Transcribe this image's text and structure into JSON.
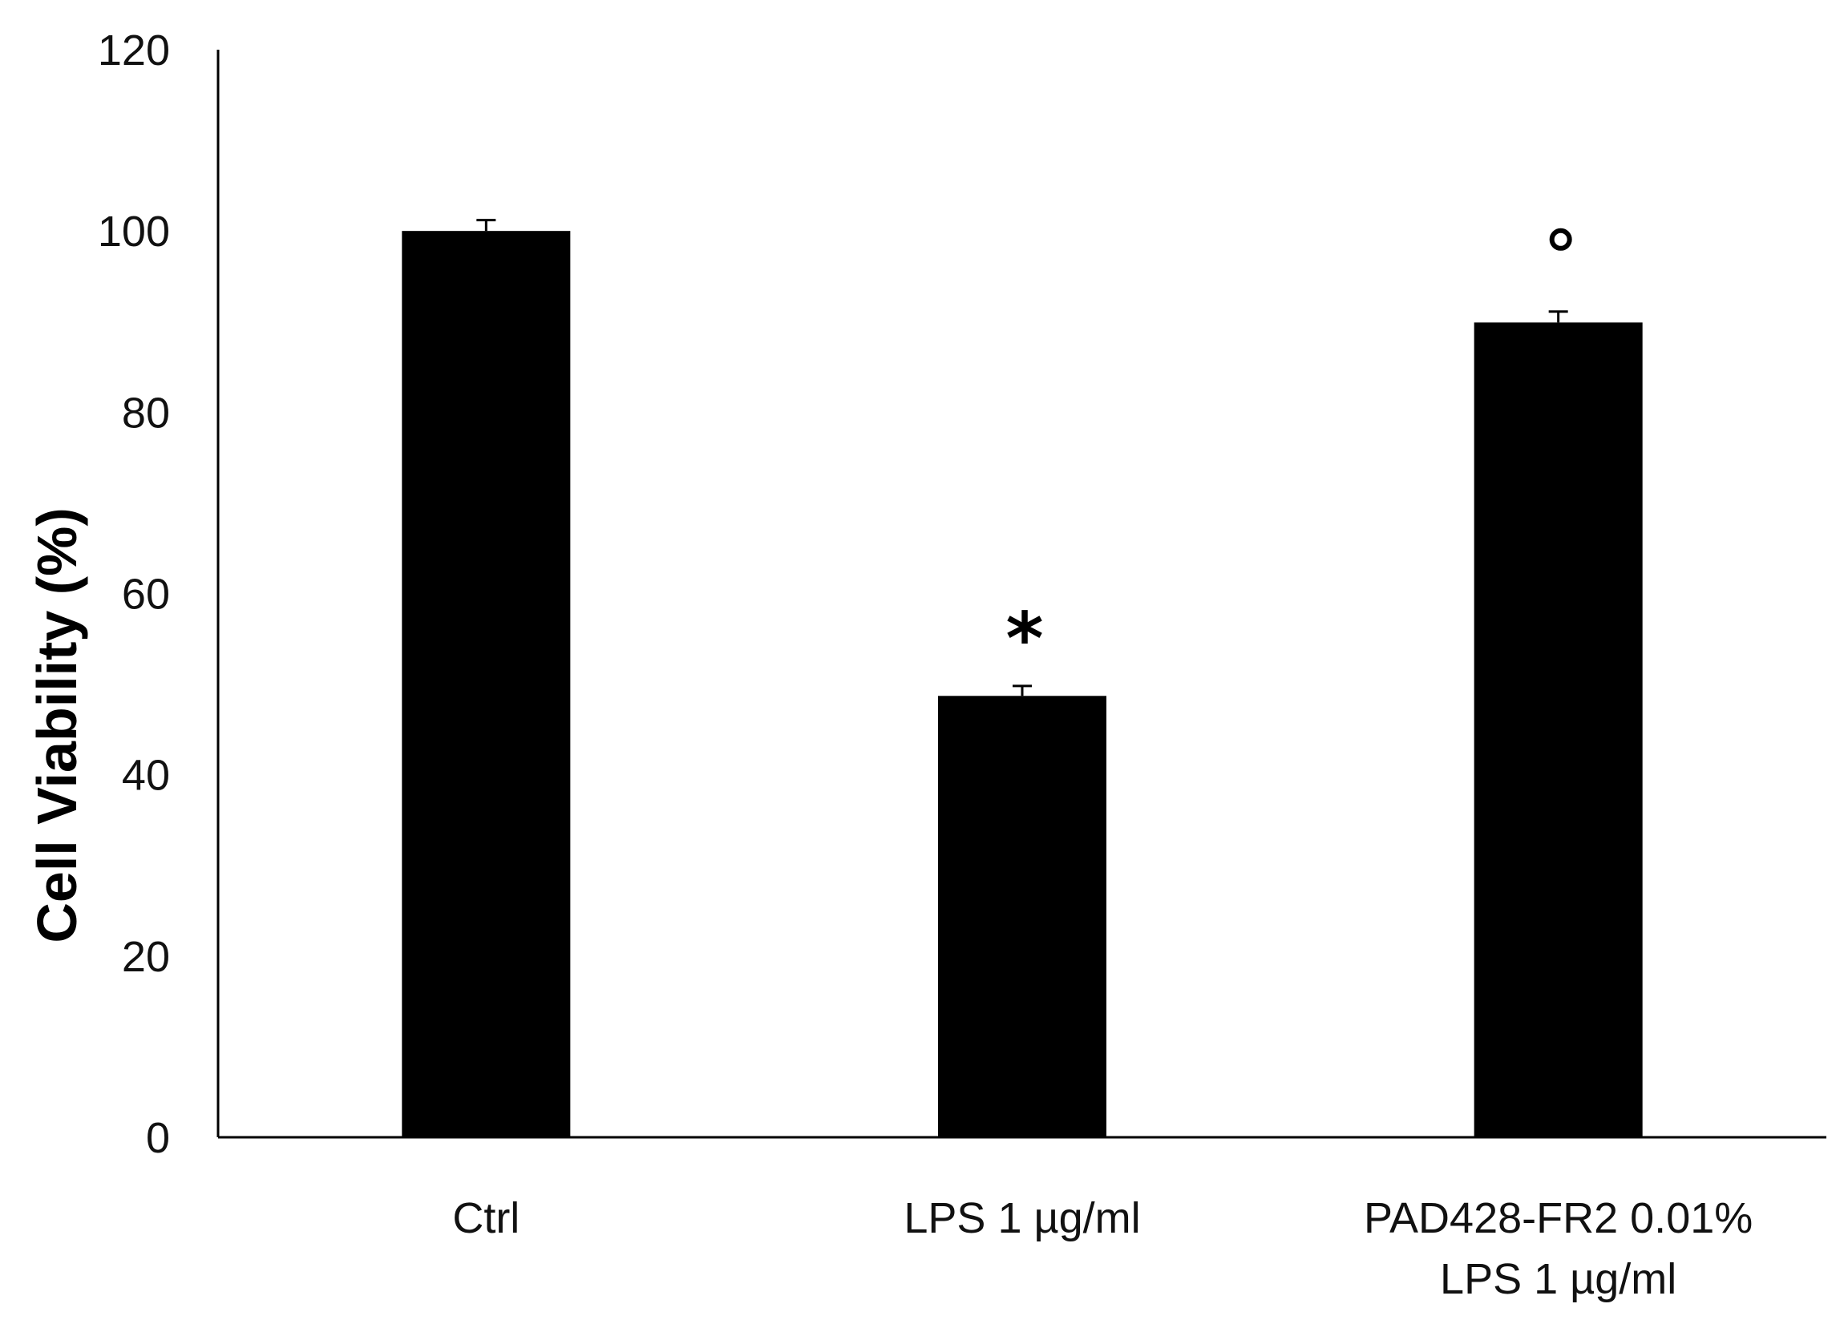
{
  "chart_data": {
    "type": "bar",
    "categories": [
      [
        "Ctrl"
      ],
      [
        "LPS 1 µg/ml"
      ],
      [
        "PAD428-FR2 0.01%",
        "LPS 1 µg/ml"
      ]
    ],
    "values": [
      100,
      48.7,
      89.9
    ],
    "errors": [
      1.2,
      1.1,
      1.2
    ],
    "annotations": [
      "",
      "*",
      "°"
    ],
    "title": "",
    "xlabel": "",
    "ylabel": "Cell Viability (%)",
    "ylim": [
      0,
      120
    ],
    "yticks": [
      0,
      20,
      40,
      60,
      80,
      100,
      120
    ],
    "grid": false,
    "legend": "none",
    "bar_color": "#000000"
  }
}
